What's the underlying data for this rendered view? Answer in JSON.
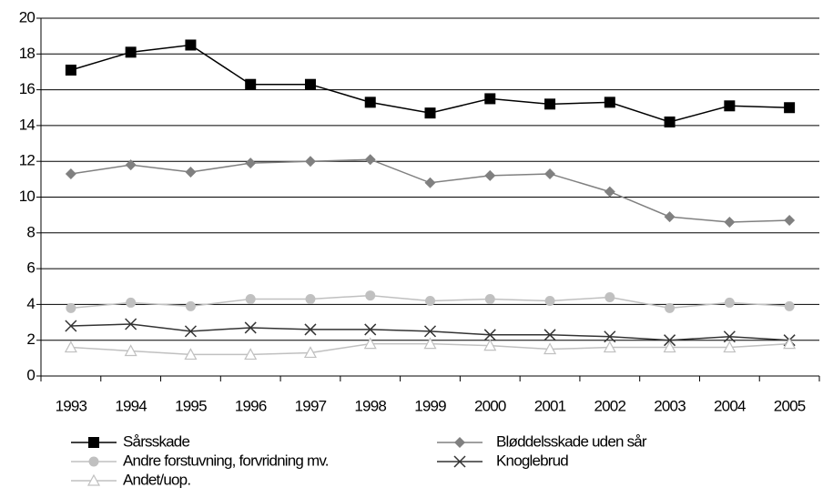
{
  "chart_data": {
    "type": "line",
    "categories": [
      "1993",
      "1994",
      "1995",
      "1996",
      "1997",
      "1998",
      "1999",
      "2000",
      "2001",
      "2002",
      "2003",
      "2004",
      "2005"
    ],
    "series": [
      {
        "name": "Sårsskade",
        "color": "#000000",
        "marker": "square",
        "values": [
          17.1,
          18.1,
          18.5,
          16.3,
          16.3,
          15.3,
          14.7,
          15.5,
          15.2,
          15.3,
          14.2,
          15.1,
          15.0
        ]
      },
      {
        "name": "Bløddelsskade uden sår",
        "color": "#808080",
        "marker": "diamond",
        "values": [
          11.3,
          11.8,
          11.4,
          11.9,
          12.0,
          12.1,
          10.8,
          11.2,
          11.3,
          10.3,
          8.9,
          8.6,
          8.7
        ]
      },
      {
        "name": "Andre forstuvning, forvridning mv.",
        "color": "#c0c0c0",
        "marker": "circle",
        "values": [
          3.8,
          4.1,
          3.9,
          4.3,
          4.3,
          4.5,
          4.2,
          4.3,
          4.2,
          4.4,
          3.8,
          4.1,
          3.9
        ]
      },
      {
        "name": "Knoglebrud",
        "color": "#333333",
        "marker": "x",
        "values": [
          2.8,
          2.9,
          2.5,
          2.7,
          2.6,
          2.6,
          2.5,
          2.3,
          2.3,
          2.2,
          2.0,
          2.2,
          2.0
        ]
      },
      {
        "name": "Andet/uop.",
        "color": "#c0c0c0",
        "marker": "triangle",
        "values": [
          1.6,
          1.4,
          1.2,
          1.2,
          1.3,
          1.8,
          1.8,
          1.7,
          1.5,
          1.6,
          1.6,
          1.6,
          1.8
        ]
      }
    ],
    "ylim": [
      0,
      20
    ],
    "yticks": [
      0,
      2,
      4,
      6,
      8,
      10,
      12,
      14,
      16,
      18,
      20
    ],
    "grid": true,
    "legend": "bottom"
  }
}
